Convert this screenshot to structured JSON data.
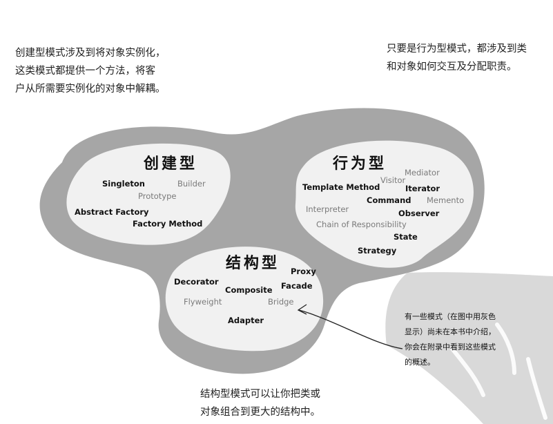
{
  "notes": {
    "creational": "创建型模式涉及到将对象实例化，\n这类模式都提供一个方法，将客\n户从所需要实例化的对象中解耦。",
    "behavioral": "只要是行为型模式，都涉及到类\n和对象如何交互及分配职责。",
    "structural": "结构型模式可以让你把类或\n对象组合到更大的结构中。"
  },
  "groups": {
    "creational": {
      "title": "创建型",
      "patterns": [
        "Singleton",
        "Builder",
        "Prototype",
        "Abstract Factory",
        "Factory Method"
      ]
    },
    "behavioral": {
      "title": "行为型",
      "patterns": [
        "Mediator",
        "Visitor",
        "Template Method",
        "Iterator",
        "Command",
        "Memento",
        "Interpreter",
        "Observer",
        "Chain of Responsibility",
        "State",
        "Strategy"
      ]
    },
    "structural": {
      "title": "结构型",
      "patterns": [
        "Proxy",
        "Decorator",
        "Facade",
        "Composite",
        "Flyweight",
        "Bridge",
        "Adapter"
      ]
    }
  },
  "aside_note": [
    "有一些模式（在图中用灰色",
    "显示）尚未在本书中介绍，",
    "你会在附录中看到这些模式",
    "的概述。"
  ],
  "colors": {
    "outer_blob": "#a6a6a6",
    "inner_blob": "#f1f1f1",
    "dark_pattern": "#111111",
    "gray_pattern": "#7a7a7a"
  }
}
